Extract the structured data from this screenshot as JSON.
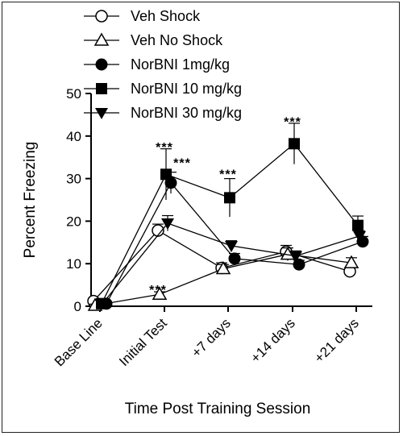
{
  "chart_data": {
    "type": "line",
    "title": "",
    "xlabel": "Time Post Training Session",
    "ylabel": "Percent Freezing",
    "ylim": [
      0,
      50
    ],
    "yticks": [
      0,
      10,
      20,
      30,
      40,
      50
    ],
    "categories": [
      "Base Line",
      "Initial Test",
      "+7 days",
      "+14 days",
      "+21 days"
    ],
    "legend_position": "top-left",
    "series": [
      {
        "name": "Veh Shock",
        "marker": "circle-open",
        "values": [
          1.2,
          17.8,
          9.0,
          12.8,
          8.2
        ],
        "errors": [
          0.6,
          1.5,
          1.2,
          1.5,
          0.8
        ]
      },
      {
        "name": "Veh No Shock",
        "marker": "triangle-open",
        "values": [
          0.2,
          2.8,
          8.8,
          12.2,
          10.2
        ],
        "errors": [
          0.3,
          0.6,
          1.0,
          1.5,
          1.2
        ]
      },
      {
        "name": "NorBNI 1mg/kg",
        "marker": "circle-filled",
        "values": [
          0.6,
          29.0,
          11.2,
          9.8,
          15.2
        ],
        "errors": [
          0.4,
          2.5,
          1.2,
          1.0,
          1.2
        ]
      },
      {
        "name": "NorBNI 10 mg/kg",
        "marker": "square-filled",
        "values": [
          0.6,
          31.0,
          25.5,
          38.2,
          19.0
        ],
        "errors": [
          0.4,
          6.0,
          4.5,
          4.8,
          2.2
        ]
      },
      {
        "name": "NorBNI 30 mg/kg",
        "marker": "triangle-down-filled",
        "values": [
          0.8,
          19.5,
          14.2,
          11.8,
          16.5
        ],
        "errors": [
          0.4,
          1.8,
          1.2,
          1.2,
          1.2
        ]
      }
    ],
    "annotations": [
      {
        "text": "***",
        "category": "Initial Test",
        "value": 37.5
      },
      {
        "text": "***",
        "category": "Initial Test",
        "value": 33.8
      },
      {
        "text": "***",
        "category": "+7 days",
        "value": 31.2
      },
      {
        "text": "***",
        "category": "+14 days",
        "value": 43.5
      },
      {
        "text": "***",
        "category": "Initial Test",
        "value": 4.0
      }
    ]
  }
}
